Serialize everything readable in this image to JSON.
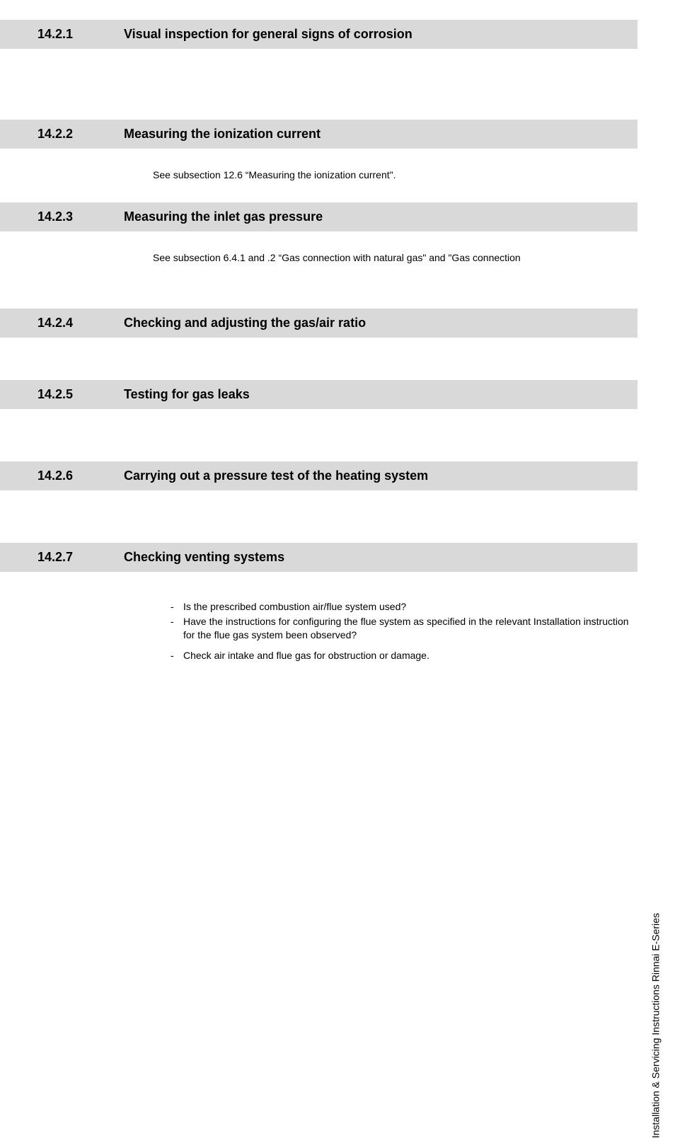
{
  "sections": {
    "s1": {
      "number": "14.2.1",
      "title": "Visual inspection for general signs of corrosion"
    },
    "s2": {
      "number": "14.2.2",
      "title": "Measuring the ionization current",
      "body": "See subsection 12.6 “Measuring the ionization current\"."
    },
    "s3": {
      "number": "14.2.3",
      "title": "Measuring the inlet gas pressure",
      "body": "See subsection 6.4.1 and .2 “Gas connection with natural gas\" and \"Gas connection"
    },
    "s4": {
      "number": "14.2.4",
      "title": "Checking and adjusting the gas/air ratio"
    },
    "s5": {
      "number": "14.2.5",
      "title": "Testing for gas leaks"
    },
    "s6": {
      "number": "14.2.6",
      "title": "Carrying out a pressure test of the heating system"
    },
    "s7": {
      "number": "14.2.7",
      "title": "Checking venting systems",
      "bullets1": {
        "b1": "Is the prescribed combustion air/flue system used?",
        "b2": "Have the instructions for configuring the flue system as specified in the relevant Installation instruction for the flue gas system been observed?"
      },
      "bullets2": {
        "b1": "Check air intake and flue gas for obstruction or damage."
      }
    }
  },
  "sideText": "Installation & Servicing Instructions Rinnai E-Series",
  "colors": {
    "headerBg": "#d9d9d9",
    "text": "#000000",
    "pageBg": "#ffffff"
  }
}
